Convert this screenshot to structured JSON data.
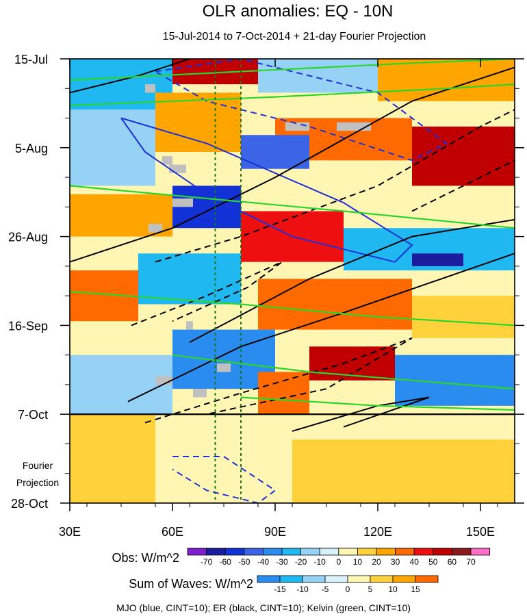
{
  "chart_data": {
    "type": "heatmap",
    "title": "OLR anomalies: EQ - 10N",
    "subtitle": "15-Jul-2014 to 7-Oct-2014 + 21-day Fourier Projection",
    "x_axis": {
      "range": [
        30,
        160
      ],
      "ticks": [
        30,
        60,
        90,
        120,
        150
      ],
      "tick_labels": [
        "30E",
        "60E",
        "90E",
        "120E",
        "150E"
      ]
    },
    "y_axis": {
      "range_days": [
        0,
        105
      ],
      "ticks": [
        0,
        21,
        42,
        63,
        84,
        105
      ],
      "tick_labels": [
        "15-Jul",
        "5-Aug",
        "26-Aug",
        "16-Sep",
        "7-Oct",
        "28-Oct"
      ]
    },
    "projection_label_line1": "Fourier",
    "projection_label_line2": "Projection",
    "projection_start_day": 84,
    "reference_lines_lon": [
      72.5,
      80
    ],
    "colorbar_obs": {
      "label": "Obs: W/m^2",
      "levels": [
        -70,
        -60,
        -50,
        -40,
        -30,
        -20,
        -10,
        0,
        10,
        20,
        30,
        40,
        50,
        60,
        70
      ],
      "colors": [
        "#7d1fd1",
        "#1c1c9e",
        "#1232d6",
        "#3c64e6",
        "#2b8cf0",
        "#20b8f0",
        "#96d2f5",
        "#d8f1fa",
        "#fff6b4",
        "#ffd23c",
        "#ffa500",
        "#ff6a00",
        "#ee1010",
        "#c00000",
        "#8b1a1a",
        "#ff6ec8"
      ]
    },
    "colorbar_waves": {
      "label": "Sum of Waves: W/m^2",
      "levels": [
        -15,
        -10,
        -5,
        0,
        5,
        10,
        15
      ],
      "colors": [
        "#2b8cf0",
        "#20b8f0",
        "#96d2f5",
        "#d8f1fa",
        "#fff6b4",
        "#ffd23c",
        "#ffa500",
        "#ff6a00"
      ]
    },
    "contour_legend": "MJO (blue, CINT=10); ER (black, CINT=10); Kelvin (green, CINT=10)",
    "blocks": [
      {
        "lon0": 30,
        "lon1": 160,
        "d0": 84,
        "d1": 105,
        "v": 8
      },
      {
        "lon0": 30,
        "lon1": 55,
        "d0": 84,
        "d1": 105,
        "v": 12
      },
      {
        "lon0": 95,
        "lon1": 160,
        "d0": 90,
        "d1": 105,
        "v": 14
      },
      {
        "lon0": 60,
        "lon1": 90,
        "d0": 88,
        "d1": 98,
        "v": 2
      },
      {
        "lon0": 30,
        "lon1": 160,
        "d0": 0,
        "d1": 84,
        "v": 3
      },
      {
        "lon0": 30,
        "lon1": 60,
        "d0": 0,
        "d1": 12,
        "v": -25
      },
      {
        "lon0": 60,
        "lon1": 85,
        "d0": 0,
        "d1": 6,
        "v": 55
      },
      {
        "lon0": 85,
        "lon1": 120,
        "d0": 0,
        "d1": 8,
        "v": -20
      },
      {
        "lon0": 120,
        "lon1": 160,
        "d0": 0,
        "d1": 10,
        "v": 25
      },
      {
        "lon0": 30,
        "lon1": 55,
        "d0": 12,
        "d1": 30,
        "v": -20
      },
      {
        "lon0": 55,
        "lon1": 80,
        "d0": 8,
        "d1": 22,
        "v": 25
      },
      {
        "lon0": 90,
        "lon1": 130,
        "d0": 14,
        "d1": 24,
        "v": 35
      },
      {
        "lon0": 130,
        "lon1": 160,
        "d0": 16,
        "d1": 30,
        "v": 50
      },
      {
        "lon0": 80,
        "lon1": 100,
        "d0": 18,
        "d1": 26,
        "v": -45
      },
      {
        "lon0": 60,
        "lon1": 80,
        "d0": 30,
        "d1": 40,
        "v": -60
      },
      {
        "lon0": 30,
        "lon1": 60,
        "d0": 32,
        "d1": 42,
        "v": 20
      },
      {
        "lon0": 80,
        "lon1": 110,
        "d0": 36,
        "d1": 48,
        "v": 40
      },
      {
        "lon0": 110,
        "lon1": 160,
        "d0": 40,
        "d1": 50,
        "v": -30
      },
      {
        "lon0": 130,
        "lon1": 145,
        "d0": 46,
        "d1": 49,
        "v": -65
      },
      {
        "lon0": 50,
        "lon1": 80,
        "d0": 46,
        "d1": 58,
        "v": -25
      },
      {
        "lon0": 30,
        "lon1": 50,
        "d0": 50,
        "d1": 62,
        "v": 30
      },
      {
        "lon0": 85,
        "lon1": 130,
        "d0": 52,
        "d1": 64,
        "v": 30
      },
      {
        "lon0": 130,
        "lon1": 160,
        "d0": 56,
        "d1": 66,
        "v": 15
      },
      {
        "lon0": 60,
        "lon1": 90,
        "d0": 64,
        "d1": 78,
        "v": -35
      },
      {
        "lon0": 100,
        "lon1": 125,
        "d0": 68,
        "d1": 76,
        "v": 50
      },
      {
        "lon0": 125,
        "lon1": 160,
        "d0": 70,
        "d1": 82,
        "v": -40
      },
      {
        "lon0": 30,
        "lon1": 60,
        "d0": 70,
        "d1": 84,
        "v": -15
      },
      {
        "lon0": 85,
        "lon1": 100,
        "d0": 74,
        "d1": 84,
        "v": 35
      }
    ],
    "gray_missing_cells": [
      [
        52,
        55,
        6,
        8
      ],
      [
        57,
        60,
        23,
        25
      ],
      [
        59,
        64,
        25,
        27
      ],
      [
        60,
        66,
        33,
        35
      ],
      [
        53,
        57,
        39,
        41
      ],
      [
        93,
        100,
        15,
        17
      ],
      [
        108,
        118,
        15,
        17
      ],
      [
        64,
        66,
        62,
        64
      ],
      [
        55,
        60,
        75,
        77
      ],
      [
        66,
        70,
        78,
        80
      ],
      [
        73,
        77,
        72,
        74
      ]
    ],
    "contours": [
      {
        "wave": "MJO",
        "dash": true,
        "pts": [
          [
            55,
            3
          ],
          [
            80,
            0
          ],
          [
            120,
            8
          ],
          [
            140,
            20
          ],
          [
            130,
            24
          ],
          [
            100,
            16
          ],
          [
            70,
            10
          ],
          [
            55,
            3
          ]
        ]
      },
      {
        "wave": "MJO",
        "dash": false,
        "pts": [
          [
            45,
            14
          ],
          [
            70,
            20
          ],
          [
            110,
            34
          ],
          [
            130,
            44
          ],
          [
            125,
            48
          ],
          [
            95,
            42
          ],
          [
            70,
            32
          ],
          [
            52,
            22
          ],
          [
            45,
            14
          ]
        ]
      },
      {
        "wave": "MJO",
        "dash": true,
        "pts": [
          [
            60,
            94
          ],
          [
            75,
            94
          ],
          [
            90,
            102
          ],
          [
            85,
            105
          ],
          [
            70,
            102
          ],
          [
            60,
            97
          ]
        ]
      },
      {
        "wave": "ER",
        "dash": false,
        "pts": [
          [
            30,
            8
          ],
          [
            50,
            4
          ],
          [
            65,
            0
          ]
        ]
      },
      {
        "wave": "ER",
        "dash": false,
        "pts": [
          [
            30,
            48
          ],
          [
            60,
            40
          ],
          [
            90,
            28
          ],
          [
            130,
            10
          ],
          [
            160,
            2
          ]
        ]
      },
      {
        "wave": "ER",
        "dash": false,
        "pts": [
          [
            65,
            67
          ],
          [
            100,
            52
          ],
          [
            130,
            42
          ],
          [
            160,
            38
          ]
        ]
      },
      {
        "wave": "ER",
        "dash": false,
        "pts": [
          [
            47,
            81
          ],
          [
            80,
            68
          ],
          [
            110,
            60
          ],
          [
            160,
            46
          ]
        ]
      },
      {
        "wave": "ER",
        "dash": false,
        "pts": [
          [
            95,
            88
          ],
          [
            120,
            82
          ],
          [
            135,
            80
          ],
          [
            110,
            87
          ]
        ]
      },
      {
        "wave": "ER",
        "dash": false,
        "pts": [
          [
            30,
            84
          ],
          [
            160,
            84
          ]
        ]
      },
      {
        "wave": "ER",
        "dash": true,
        "pts": [
          [
            55,
            48
          ],
          [
            80,
            42
          ],
          [
            120,
            30
          ],
          [
            150,
            16
          ],
          [
            160,
            12
          ]
        ]
      },
      {
        "wave": "ER",
        "dash": true,
        "pts": [
          [
            48,
            63
          ],
          [
            70,
            56
          ],
          [
            92,
            48
          ],
          [
            82,
            54
          ],
          [
            60,
            62
          ]
        ]
      },
      {
        "wave": "ER",
        "dash": true,
        "pts": [
          [
            52,
            86
          ],
          [
            80,
            79
          ],
          [
            110,
            72
          ],
          [
            130,
            66
          ],
          [
            105,
            78
          ],
          [
            70,
            84
          ]
        ]
      },
      {
        "wave": "ER",
        "dash": true,
        "pts": [
          [
            130,
            36
          ],
          [
            150,
            28
          ],
          [
            160,
            24
          ]
        ]
      },
      {
        "wave": "Kelvin",
        "dash": false,
        "pts": [
          [
            30,
            5
          ],
          [
            80,
            3
          ],
          [
            130,
            1
          ],
          [
            160,
            0
          ]
        ]
      },
      {
        "wave": "Kelvin",
        "dash": false,
        "pts": [
          [
            30,
            11
          ],
          [
            90,
            9
          ],
          [
            140,
            7
          ],
          [
            160,
            6
          ]
        ]
      },
      {
        "wave": "Kelvin",
        "dash": false,
        "pts": [
          [
            30,
            30
          ],
          [
            70,
            33
          ],
          [
            110,
            36
          ],
          [
            160,
            40
          ]
        ]
      },
      {
        "wave": "Kelvin",
        "dash": false,
        "pts": [
          [
            30,
            55
          ],
          [
            80,
            58
          ],
          [
            120,
            61
          ],
          [
            160,
            63
          ]
        ]
      },
      {
        "wave": "Kelvin",
        "dash": false,
        "pts": [
          [
            60,
            70
          ],
          [
            100,
            74
          ],
          [
            160,
            78
          ]
        ]
      },
      {
        "wave": "Kelvin",
        "dash": false,
        "pts": [
          [
            80,
            80
          ],
          [
            120,
            82
          ],
          [
            160,
            83
          ]
        ]
      }
    ]
  }
}
